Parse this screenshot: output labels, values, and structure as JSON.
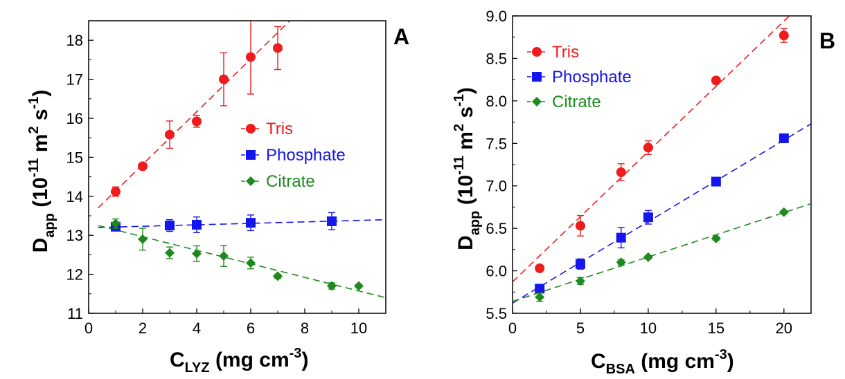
{
  "chart_data": [
    {
      "type": "scatter",
      "panel_label": "A",
      "xlabel": {
        "main": "C",
        "sub": "LYZ",
        "rest": " (mg cm",
        "sup": "-3",
        "end": ")"
      },
      "ylabel": {
        "main": "D",
        "sub": "app",
        "rest": " (10",
        "sup1": "-11",
        "mid": " m",
        "sup2": "2",
        "mid2": " s",
        "sup3": "-1",
        "end": ")"
      },
      "xlim": [
        0,
        11
      ],
      "ylim": [
        11,
        18.5
      ],
      "xticks": [
        0,
        2,
        4,
        6,
        8,
        10
      ],
      "yticks": [
        11,
        12,
        13,
        14,
        15,
        16,
        17,
        18
      ],
      "legend_position": "middle-right",
      "series": [
        {
          "name": "Tris",
          "color": "#ee1c1c",
          "marker": "circle",
          "x": [
            1,
            2,
            3,
            4,
            5,
            6,
            7
          ],
          "y": [
            14.12,
            14.77,
            15.58,
            15.92,
            17.0,
            17.57,
            17.8
          ],
          "err": [
            0.12,
            0.08,
            0.35,
            0.15,
            0.68,
            0.95,
            0.55
          ],
          "fit": [
            [
              0.35,
              13.7
            ],
            [
              7.45,
              18.5
            ]
          ]
        },
        {
          "name": "Phosphate",
          "color": "#1515ee",
          "marker": "square",
          "x": [
            1,
            3,
            4,
            6,
            9
          ],
          "y": [
            13.22,
            13.25,
            13.27,
            13.32,
            13.36
          ],
          "err": [
            0.08,
            0.15,
            0.2,
            0.2,
            0.22
          ],
          "fit": [
            [
              0.35,
              13.2
            ],
            [
              11,
              13.4
            ]
          ]
        },
        {
          "name": "Citrate",
          "color": "#1e8a1e",
          "marker": "diamond",
          "x": [
            1,
            2,
            3,
            4,
            5,
            6,
            7,
            9,
            10
          ],
          "y": [
            13.3,
            12.9,
            12.55,
            12.53,
            12.47,
            12.29,
            11.95,
            11.7,
            11.7
          ],
          "err": [
            0.12,
            0.28,
            0.15,
            0.2,
            0.27,
            0.15,
            0.05,
            0.08,
            0.04
          ],
          "fit": [
            [
              0.35,
              13.25
            ],
            [
              11,
              11.4
            ]
          ]
        }
      ]
    },
    {
      "type": "scatter",
      "panel_label": "B",
      "xlabel": {
        "main": "C",
        "sub": "BSA",
        "rest": " (mg cm",
        "sup": "-3",
        "end": ")"
      },
      "ylabel": {
        "main": "D",
        "sub": "app",
        "rest": " (10",
        "sup1": "-11",
        "mid": " m",
        "sup2": "2",
        "mid2": " s",
        "sup3": "-1",
        "end": ")"
      },
      "xlim": [
        0,
        22
      ],
      "ylim": [
        5.5,
        9.0
      ],
      "xticks": [
        0,
        5,
        10,
        15,
        20
      ],
      "yticks": [
        5.5,
        6.0,
        6.5,
        7.0,
        7.5,
        8.0,
        8.5,
        9.0
      ],
      "ytick_labels": [
        "5.5",
        "6.0",
        "6.5",
        "7.0",
        "7.5",
        "8.0",
        "8.5",
        "9.0"
      ],
      "legend_position": "top-left",
      "series": [
        {
          "name": "Tris",
          "color": "#ee1c1c",
          "marker": "circle",
          "x": [
            2,
            5,
            8,
            10,
            15,
            20
          ],
          "y": [
            6.03,
            6.53,
            7.16,
            7.45,
            8.24,
            8.77
          ],
          "err": [
            0.03,
            0.12,
            0.1,
            0.08,
            0.03,
            0.08
          ],
          "fit": [
            [
              0,
              5.87
            ],
            [
              20.4,
              9.0
            ]
          ]
        },
        {
          "name": "Phosphate",
          "color": "#1515ee",
          "marker": "square",
          "x": [
            2,
            5,
            8,
            10,
            15,
            20
          ],
          "y": [
            5.79,
            6.08,
            6.39,
            6.63,
            7.05,
            7.56
          ],
          "err": [
            0.03,
            0.06,
            0.12,
            0.08,
            0.04,
            0.03
          ],
          "fit": [
            [
              0,
              5.62
            ],
            [
              22,
              7.73
            ]
          ]
        },
        {
          "name": "Citrate",
          "color": "#1e8a1e",
          "marker": "diamond",
          "x": [
            2,
            5,
            8,
            10,
            15,
            20
          ],
          "y": [
            5.69,
            5.88,
            6.1,
            6.16,
            6.38,
            6.69
          ],
          "err": [
            0.05,
            0.04,
            0.03,
            0.02,
            0.02,
            0.02
          ],
          "fit": [
            [
              0,
              5.64
            ],
            [
              22,
              6.79
            ]
          ]
        }
      ]
    }
  ]
}
